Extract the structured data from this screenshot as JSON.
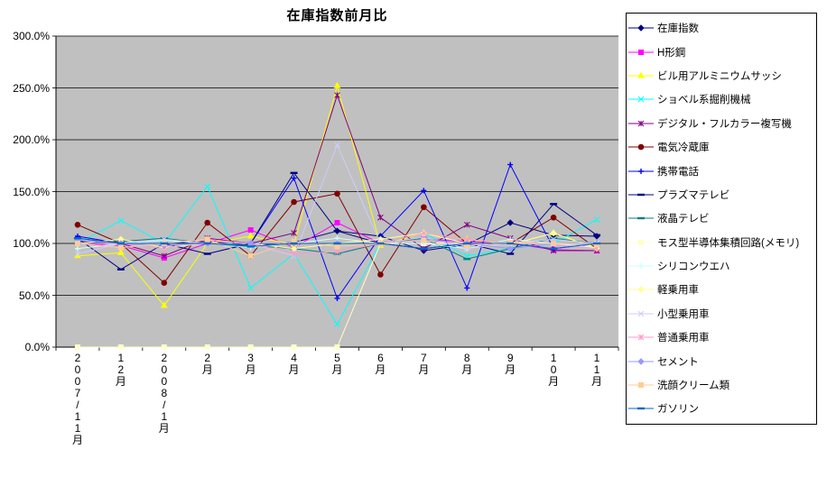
{
  "title": "在庫指数前月比",
  "chart_data": {
    "type": "line",
    "title": "在庫指数前月比",
    "unit": "%",
    "grid": true,
    "legend_position": "right",
    "plot_bg_color": "#C0C0C0",
    "ylim": [
      0,
      300
    ],
    "y_tick_step": 50,
    "y_tick_labels": [
      "0.0%",
      "50.0%",
      "100.0%",
      "150.0%",
      "200.0%",
      "250.0%",
      "300.0%"
    ],
    "categories": [
      "2007/11月",
      "12月",
      "2008/1月",
      "2月",
      "3月",
      "4月",
      "5月",
      "6月",
      "7月",
      "8月",
      "9月",
      "10月",
      "11月"
    ],
    "series": [
      {
        "name": "在庫指数",
        "color": "#000080",
        "marker": "diamond",
        "values": [
          105,
          100,
          100,
          102,
          98,
          101,
          112,
          107,
          93,
          99,
          120,
          108,
          107
        ]
      },
      {
        "name": "H形鋼",
        "color": "#FF00FF",
        "marker": "square",
        "values": [
          100,
          98,
          86,
          100,
          113,
          96,
          120,
          100,
          104,
          102,
          100,
          94,
          93
        ]
      },
      {
        "name": "ビル用アルミニウムサッシ",
        "color": "#FFFF00",
        "marker": "triangle",
        "values": [
          88,
          91,
          40,
          100,
          107,
          99,
          252,
          98,
          110,
          104,
          99,
          110,
          96
        ]
      },
      {
        "name": "ショベル系掘削機械",
        "color": "#00FFFF",
        "marker": "x",
        "values": [
          100,
          122,
          100,
          155,
          57,
          90,
          22,
          100,
          110,
          88,
          95,
          100,
          123
        ]
      },
      {
        "name": "デジタル・フルカラー複写機",
        "color": "#800080",
        "marker": "asterisk",
        "values": [
          102,
          100,
          88,
          105,
          100,
          110,
          243,
          125,
          95,
          118,
          105,
          93,
          93
        ]
      },
      {
        "name": "電気冷蔵庫",
        "color": "#800000",
        "marker": "circle",
        "values": [
          118,
          100,
          62,
          120,
          88,
          140,
          148,
          70,
          135,
          100,
          100,
          125,
          95
        ]
      },
      {
        "name": "携帯電話",
        "color": "#0000FF",
        "marker": "plus",
        "values": [
          107,
          100,
          100,
          100,
          100,
          163,
          47,
          107,
          151,
          57,
          176,
          95,
          100
        ]
      },
      {
        "name": "プラズマテレビ",
        "color": "#000080",
        "marker": "dash",
        "values": [
          105,
          75,
          100,
          90,
          100,
          168,
          112,
          100,
          95,
          100,
          90,
          138,
          108
        ]
      },
      {
        "name": "液晶テレビ",
        "color": "#008080",
        "marker": "dash",
        "values": [
          100,
          102,
          105,
          100,
          98,
          95,
          90,
          100,
          105,
          85,
          95,
          105,
          100
        ]
      },
      {
        "name": "モス型半導体集積回路(メモリ)",
        "color": "#FFFFCC",
        "marker": "square",
        "values": [
          0,
          0,
          0,
          0,
          0,
          0,
          0,
          100,
          100,
          100,
          100,
          100,
          100
        ]
      },
      {
        "name": "シリコンウエハ",
        "color": "#CCFFFF",
        "marker": "plus",
        "values": [
          95,
          100,
          103,
          100,
          96,
          100,
          105,
          100,
          100,
          95,
          104,
          100,
          96
        ]
      },
      {
        "name": "軽乗用車",
        "color": "#FFFF99",
        "marker": "diamond",
        "values": [
          100,
          104,
          96,
          100,
          100,
          95,
          100,
          104,
          110,
          100,
          99,
          110,
          95
        ]
      },
      {
        "name": "小型乗用車",
        "color": "#CCCCFF",
        "marker": "x",
        "values": [
          90,
          100,
          104,
          100,
          100,
          88,
          195,
          100,
          106,
          95,
          100,
          104,
          100
        ]
      },
      {
        "name": "普通乗用車",
        "color": "#FF99CC",
        "marker": "asterisk",
        "values": [
          100,
          100,
          95,
          104,
          100,
          90,
          92,
          100,
          110,
          104,
          100,
          99,
          95
        ]
      },
      {
        "name": "セメント",
        "color": "#9999FF",
        "marker": "diamond",
        "values": [
          103,
          100,
          98,
          100,
          100,
          100,
          100,
          100,
          104,
          100,
          95,
          100,
          100
        ]
      },
      {
        "name": "洗顔クリーム類",
        "color": "#FFCC99",
        "marker": "square",
        "values": [
          100,
          96,
          100,
          104,
          88,
          102,
          97,
          100,
          103,
          98,
          101,
          100,
          99
        ]
      },
      {
        "name": "ガソリン",
        "color": "#0066CC",
        "marker": "dash",
        "values": [
          105,
          100,
          100,
          100,
          97,
          100,
          100,
          100,
          95,
          100,
          100,
          95,
          100
        ]
      }
    ]
  }
}
